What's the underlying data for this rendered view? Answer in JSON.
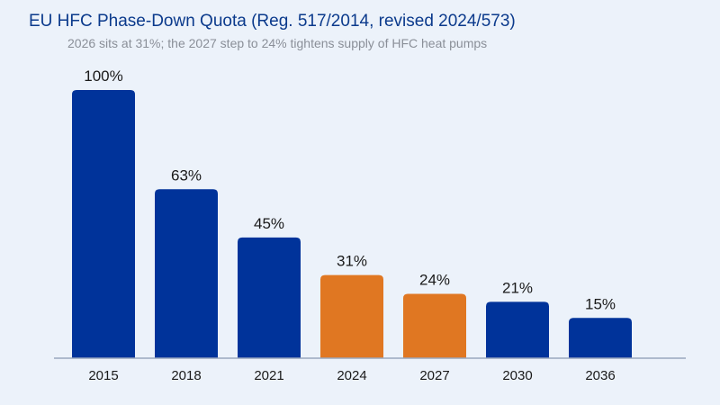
{
  "chart_data": {
    "type": "bar",
    "title": "EU HFC Phase-Down Quota (Reg. 517/2014, revised 2024/573)",
    "subtitle": "2026 sits at 31%; the 2027 step to 24% tightens supply of HFC heat pumps",
    "xlabel": "",
    "ylabel": "",
    "categories": [
      "2015",
      "2018",
      "2021",
      "2024",
      "2027",
      "2030",
      "2036"
    ],
    "values": [
      100,
      63,
      45,
      31,
      24,
      21,
      15
    ],
    "value_labels": [
      "100%",
      "63%",
      "45%",
      "31%",
      "24%",
      "21%",
      "15%"
    ],
    "highlighted": [
      false,
      false,
      false,
      true,
      true,
      false,
      false
    ],
    "ylim": [
      0,
      100
    ],
    "grid": false,
    "legend": "none",
    "colors": {
      "default": "#00339A",
      "highlight": "#E07722",
      "title": "#0B3A8C",
      "subtitle": "#8A8F98",
      "baseline": "#9AA8BE"
    }
  }
}
